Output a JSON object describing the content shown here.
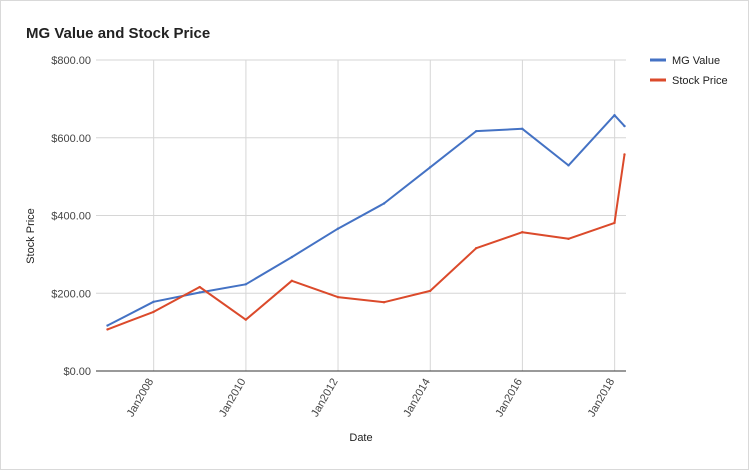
{
  "chart_data": {
    "type": "line",
    "title": "MG Value and Stock Price",
    "xlabel": "Date",
    "ylabel": "Stock Price",
    "xlim": [
      "2006-10-01",
      "2018-04-01"
    ],
    "ylim": [
      0,
      800
    ],
    "y_ticks": [
      "$0.00",
      "$200.00",
      "$400.00",
      "$600.00",
      "$800.00"
    ],
    "y_tick_values": [
      0,
      200,
      400,
      600,
      800
    ],
    "x_ticks": [
      "Jan2008",
      "Jan2010",
      "Jan2012",
      "Jan2014",
      "Jan2016",
      "Jan2018"
    ],
    "x_tick_dates": [
      "2008-01-01",
      "2010-01-01",
      "2012-01-01",
      "2014-01-01",
      "2016-01-01",
      "2018-01-01"
    ],
    "grid": true,
    "legend_position": "right",
    "series": [
      {
        "name": "MG Value",
        "color": "#4472c4",
        "points": [
          {
            "x": "2006-12-31",
            "y": 117
          },
          {
            "x": "2007-12-31",
            "y": 178
          },
          {
            "x": "2008-12-31",
            "y": 202
          },
          {
            "x": "2009-12-31",
            "y": 223
          },
          {
            "x": "2010-12-31",
            "y": 293
          },
          {
            "x": "2011-12-31",
            "y": 366
          },
          {
            "x": "2012-12-31",
            "y": 431
          },
          {
            "x": "2013-12-31",
            "y": 524
          },
          {
            "x": "2014-12-31",
            "y": 617
          },
          {
            "x": "2015-12-31",
            "y": 623
          },
          {
            "x": "2016-12-31",
            "y": 529
          },
          {
            "x": "2017-12-31",
            "y": 658
          },
          {
            "x": "2018-03-20",
            "y": 630
          }
        ]
      },
      {
        "name": "Stock Price",
        "color": "#db4a2b",
        "points": [
          {
            "x": "2006-12-31",
            "y": 107
          },
          {
            "x": "2007-12-31",
            "y": 152
          },
          {
            "x": "2008-12-31",
            "y": 216
          },
          {
            "x": "2009-12-31",
            "y": 132
          },
          {
            "x": "2010-12-31",
            "y": 232
          },
          {
            "x": "2011-12-31",
            "y": 190
          },
          {
            "x": "2012-12-31",
            "y": 177
          },
          {
            "x": "2013-12-31",
            "y": 206
          },
          {
            "x": "2014-12-31",
            "y": 316
          },
          {
            "x": "2015-12-31",
            "y": 357
          },
          {
            "x": "2016-12-31",
            "y": 340
          },
          {
            "x": "2017-12-31",
            "y": 381
          },
          {
            "x": "2018-03-20",
            "y": 557
          }
        ]
      }
    ]
  }
}
